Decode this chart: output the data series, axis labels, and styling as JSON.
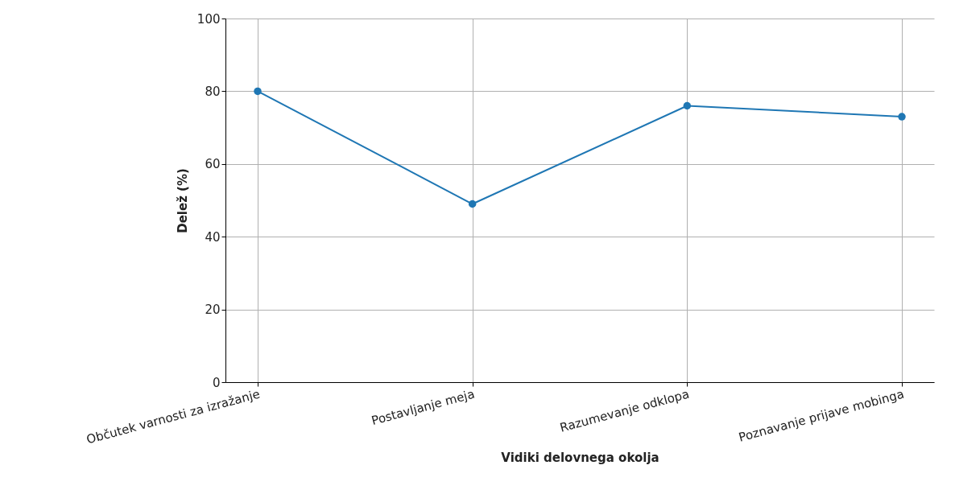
{
  "chart_data": {
    "type": "line",
    "xlabel": "Vidiki delovnega okolja",
    "ylabel": "Delež (%)",
    "categories": [
      "Občutek varnosti za izražanje",
      "Postavljanje meja",
      "Razumevanje odklopa",
      "Poznavanje prijave mobinga"
    ],
    "series": [
      {
        "color": "#1f77b4",
        "values": [
          80,
          49,
          76,
          73
        ]
      }
    ],
    "ylim": [
      0,
      100
    ],
    "yticks": [
      0,
      20,
      40,
      60,
      80,
      100
    ],
    "grid": true,
    "marker": "circle",
    "line_style": "solid"
  }
}
